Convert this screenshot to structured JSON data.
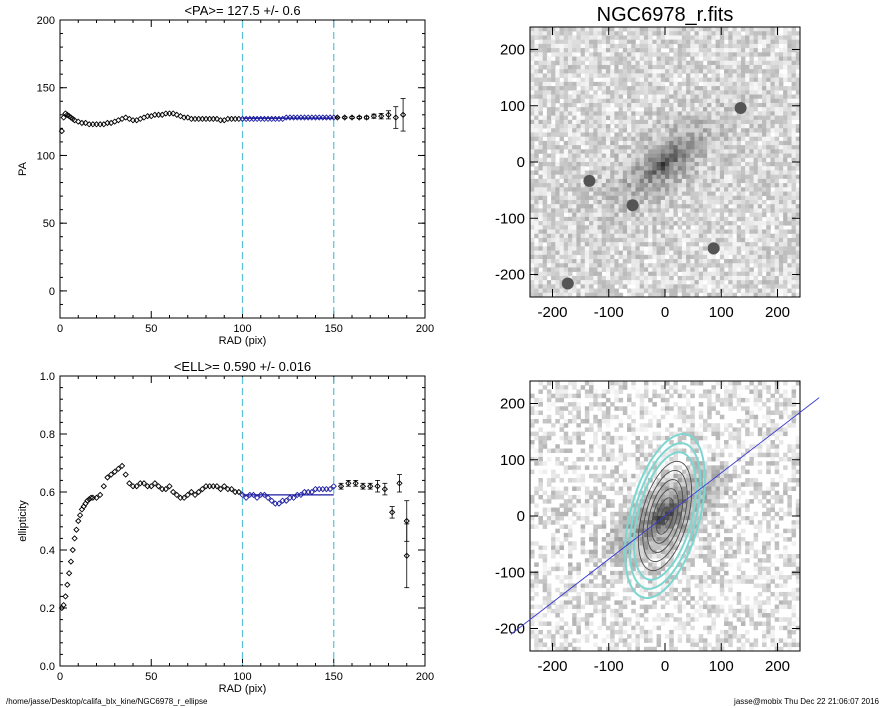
{
  "chart_data": [
    {
      "type": "scatter",
      "title": "<PA>= 127.5 +/-   0.6",
      "xlabel": "RAD (pix)",
      "ylabel": "PA",
      "xlim": [
        0,
        200
      ],
      "ylim": [
        -20,
        200
      ],
      "xticks": [
        "0",
        "50",
        "100",
        "150",
        "200"
      ],
      "yticks": [
        "0",
        "50",
        "100",
        "150",
        "200"
      ],
      "vlines": [
        100,
        150
      ],
      "fit_range": [
        100,
        150
      ],
      "fit_value": 127.5,
      "series": [
        {
          "x": [
            1,
            2,
            3,
            4,
            5,
            6,
            7,
            8,
            10,
            12,
            14,
            16,
            18,
            20,
            22,
            24,
            26,
            28,
            30,
            32,
            34,
            36,
            38,
            40,
            42,
            44,
            46,
            48,
            50,
            52,
            54,
            56,
            58,
            60,
            62,
            64,
            66,
            68,
            70,
            72,
            74,
            76,
            78,
            80,
            82,
            84,
            86,
            88,
            90,
            92,
            94,
            96,
            98
          ],
          "y": [
            118,
            128,
            131,
            130,
            129,
            128,
            127,
            126,
            125,
            124,
            124,
            123,
            123,
            123,
            123,
            123,
            124,
            124,
            125,
            126,
            127,
            128,
            127,
            126,
            126,
            127,
            128,
            129,
            129,
            130,
            130,
            130,
            131,
            131,
            131,
            130,
            129,
            128,
            128,
            127,
            127,
            127,
            127,
            127,
            127,
            127,
            127,
            126,
            126,
            127,
            127,
            127,
            127
          ]
        },
        {
          "x": [
            100,
            102,
            104,
            106,
            108,
            110,
            112,
            114,
            116,
            118,
            120,
            122,
            124,
            126,
            128,
            130,
            132,
            134,
            136,
            138,
            140,
            142,
            144,
            146,
            148,
            150
          ],
          "y": [
            127,
            127,
            127,
            127,
            127,
            127,
            127,
            127,
            127,
            127,
            127,
            127,
            128,
            128,
            128,
            128,
            128,
            128,
            128,
            128,
            128,
            128,
            128,
            128,
            128,
            128
          ]
        },
        {
          "x": [
            152,
            156,
            160,
            164,
            168,
            172,
            176,
            180,
            184,
            188
          ],
          "y": [
            128,
            128,
            128,
            128,
            128,
            129,
            129,
            130,
            128,
            130
          ],
          "err": [
            0.5,
            0.6,
            0.7,
            0.8,
            1,
            1.5,
            2,
            3,
            8,
            12
          ]
        }
      ]
    },
    {
      "type": "scatter",
      "title": "<ELL>= 0.590 +/-  0.016",
      "xlabel": "RAD (pix)",
      "ylabel": "ellipticity",
      "xlim": [
        0,
        200
      ],
      "ylim": [
        0,
        1
      ],
      "xticks": [
        "0",
        "50",
        "100",
        "150",
        "200"
      ],
      "yticks": [
        "0.0",
        "0.2",
        "0.4",
        "0.6",
        "0.8",
        "1.0"
      ],
      "vlines": [
        100,
        150
      ],
      "fit_range": [
        100,
        150
      ],
      "fit_value": 0.59,
      "series": [
        {
          "x": [
            1,
            2,
            3,
            4,
            5,
            6,
            7,
            8,
            9,
            10,
            11,
            12,
            13,
            14,
            15,
            16,
            17,
            18,
            20,
            22,
            24,
            26,
            28,
            30,
            32,
            34,
            36,
            38,
            40,
            42,
            44,
            46,
            48,
            50,
            52,
            54,
            56,
            58,
            60,
            62,
            64,
            66,
            68,
            70,
            72,
            74,
            76,
            78,
            80,
            82,
            84,
            86,
            88,
            90,
            92,
            94,
            96,
            98
          ],
          "y": [
            0.2,
            0.21,
            0.24,
            0.28,
            0.32,
            0.36,
            0.4,
            0.44,
            0.47,
            0.5,
            0.52,
            0.54,
            0.55,
            0.56,
            0.57,
            0.575,
            0.58,
            0.58,
            0.58,
            0.59,
            0.62,
            0.65,
            0.66,
            0.67,
            0.68,
            0.69,
            0.66,
            0.63,
            0.62,
            0.62,
            0.63,
            0.63,
            0.62,
            0.62,
            0.63,
            0.62,
            0.61,
            0.61,
            0.62,
            0.6,
            0.59,
            0.58,
            0.58,
            0.59,
            0.6,
            0.59,
            0.6,
            0.61,
            0.62,
            0.62,
            0.62,
            0.62,
            0.61,
            0.62,
            0.61,
            0.61,
            0.6,
            0.6
          ]
        },
        {
          "x": [
            100,
            102,
            104,
            106,
            108,
            110,
            112,
            114,
            116,
            118,
            120,
            122,
            124,
            126,
            128,
            130,
            132,
            134,
            136,
            138,
            140,
            142,
            144,
            146,
            148,
            150
          ],
          "y": [
            0.59,
            0.58,
            0.59,
            0.59,
            0.58,
            0.59,
            0.59,
            0.58,
            0.57,
            0.56,
            0.56,
            0.57,
            0.57,
            0.58,
            0.58,
            0.59,
            0.59,
            0.6,
            0.6,
            0.6,
            0.61,
            0.61,
            0.61,
            0.61,
            0.61,
            0.62
          ]
        },
        {
          "x": [
            154,
            158,
            162,
            166,
            170,
            174,
            178,
            182,
            186,
            190
          ],
          "y": [
            0.62,
            0.63,
            0.63,
            0.62,
            0.62,
            0.62,
            0.61,
            0.53,
            0.63,
            0.5
          ],
          "err": [
            0.01,
            0.01,
            0.01,
            0.01,
            0.01,
            0.02,
            0.02,
            0.02,
            0.03,
            0.07
          ]
        },
        {
          "x": [
            190
          ],
          "y": [
            0.38
          ],
          "err": [
            0.11
          ]
        }
      ]
    },
    {
      "type": "heatmap",
      "title": "NGC6978_r.fits",
      "xlim": [
        -240,
        240
      ],
      "ylim": [
        -240,
        240
      ],
      "xticks": [
        "-200",
        "-100",
        "0",
        "100",
        "200"
      ],
      "yticks": [
        "-200",
        "-100",
        "0",
        "100",
        "200"
      ],
      "galaxy": {
        "pa_deg": 127.5,
        "ellipticity": 0.59
      }
    },
    {
      "type": "heatmap",
      "title": "",
      "xlim": [
        -240,
        240
      ],
      "ylim": [
        -240,
        240
      ],
      "xticks": [
        "-200",
        "-100",
        "0",
        "100",
        "200"
      ],
      "yticks": [
        "-200",
        "-100",
        "0",
        "100",
        "200"
      ],
      "galaxy": {
        "pa_deg": 127.5,
        "ellipticity": 0.59
      },
      "contours": {
        "count": 9,
        "outer_radius": 150
      }
    }
  ],
  "colors": {
    "axes": "#000000",
    "marker": "#000000",
    "fit_marker": "#1a1aa0",
    "vline": "#5bc0d8",
    "contour_light": "#7ed6d0",
    "contour_dark": "#4a4a4a",
    "majoraxis": "#3b3bd6"
  },
  "footer": {
    "path": "/home/jasse/Desktop/califa_blx_kine/NGC6978_r_ellipse",
    "user": "jasse@mobix  Thu Dec 22 21:06:07 2016"
  }
}
